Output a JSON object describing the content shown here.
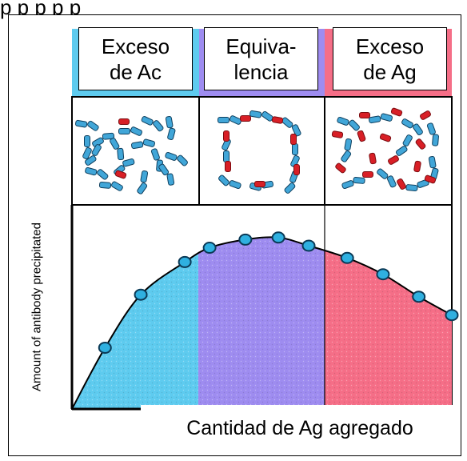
{
  "header": {
    "text": "p  p p  p  p"
  },
  "zones": [
    {
      "line1": "Exceso",
      "line2": "de Ac",
      "color": "#5ecbef"
    },
    {
      "line1": "Equiva-",
      "line2": "lencia",
      "color": "#9e8cf0"
    },
    {
      "line1": "Exceso",
      "line2": "de Ag",
      "color": "#f56e87"
    }
  ],
  "axes": {
    "ylabel": "Amount of antibody precipitated",
    "xlabel": "Cantidad de Ag agregado"
  },
  "chart_data": {
    "type": "area",
    "points": [
      [
        0.0,
        0.0
      ],
      [
        0.12,
        0.3
      ],
      [
        0.25,
        0.56
      ],
      [
        0.41,
        0.72
      ],
      [
        0.5,
        0.79
      ],
      [
        0.63,
        0.83
      ],
      [
        0.75,
        0.84
      ],
      [
        0.86,
        0.8
      ],
      [
        1.0,
        0.74
      ],
      [
        1.13,
        0.66
      ],
      [
        1.26,
        0.55
      ],
      [
        1.38,
        0.46
      ]
    ],
    "zone_boundaries": [
      0.41,
      0.83
    ],
    "xlim": [
      0,
      1.38
    ],
    "ylim": [
      0,
      1
    ]
  },
  "colors": {
    "antibody": "#41a6d8",
    "antigen": "#d81f26",
    "point_fill": "#2fb0e0",
    "point_stroke": "#0b3a57"
  }
}
